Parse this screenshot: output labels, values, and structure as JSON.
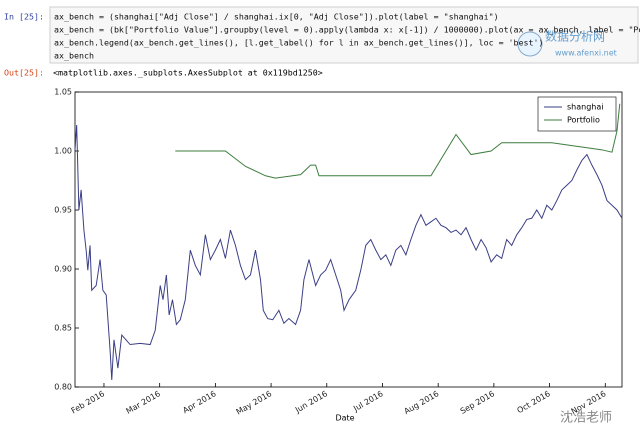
{
  "cell": {
    "input_prompt": "In [25]:",
    "code_lines": [
      "ax_bench = (shanghai[\"Adj Close\"] / shanghai.ix[0, \"Adj Close\"]).plot(label = \"shanghai\")",
      "ax_bench = (bk[\"Portfolio Value\"].groupby(level = 0).apply(lambda x: x[-1]) / 1000000).plot(ax = ax_bench, label = \"Por",
      "ax_bench.legend(ax_bench.get_lines(), [l.get_label() for l in ax_bench.get_lines()], loc = 'best')",
      "ax_bench"
    ],
    "output_prompt": "Out[25]:",
    "output_text": "<matplotlib.axes._subplots.AxesSubplot at 0x119bd1250>"
  },
  "chart_data": {
    "type": "line",
    "x_label": "Date",
    "xlim": [
      1.48,
      11.3
    ],
    "xticks": [
      {
        "value": 2,
        "label": "Feb 2016"
      },
      {
        "value": 3,
        "label": "Mar 2016"
      },
      {
        "value": 4,
        "label": "Apr 2016"
      },
      {
        "value": 5,
        "label": "May 2016"
      },
      {
        "value": 6,
        "label": "Jun 2016"
      },
      {
        "value": 7,
        "label": "Jul 2016"
      },
      {
        "value": 8,
        "label": "Aug 2016"
      },
      {
        "value": 9,
        "label": "Sep 2016"
      },
      {
        "value": 10,
        "label": "Oct 2016"
      },
      {
        "value": 11,
        "label": "Nov 2016"
      }
    ],
    "ylim": [
      0.8,
      1.05
    ],
    "yticks": [
      {
        "value": 0.8,
        "label": "0.80"
      },
      {
        "value": 0.85,
        "label": "0.85"
      },
      {
        "value": 0.9,
        "label": "0.90"
      },
      {
        "value": 0.95,
        "label": "0.95"
      },
      {
        "value": 1.0,
        "label": "1.00"
      },
      {
        "value": 1.05,
        "label": "1.05"
      }
    ],
    "legend": "upper right",
    "series": [
      {
        "name": "shanghai",
        "color": "#3b3f86",
        "x": [
          1.48,
          1.51,
          1.55,
          1.59,
          1.64,
          1.68,
          1.71,
          1.75,
          1.78,
          1.86,
          1.93,
          1.98,
          2.04,
          2.11,
          2.14,
          2.18,
          2.25,
          2.32,
          2.47,
          2.65,
          2.83,
          2.92,
          3.01,
          3.06,
          3.12,
          3.17,
          3.23,
          3.3,
          3.37,
          3.46,
          3.55,
          3.64,
          3.73,
          3.82,
          3.91,
          4.0,
          4.09,
          4.18,
          4.27,
          4.36,
          4.45,
          4.54,
          4.63,
          4.72,
          4.81,
          4.86,
          4.94,
          5.03,
          5.14,
          5.23,
          5.32,
          5.44,
          5.53,
          5.59,
          5.68,
          5.8,
          5.89,
          5.98,
          6.07,
          6.16,
          6.25,
          6.31,
          6.4,
          6.52,
          6.61,
          6.7,
          6.79,
          6.88,
          6.97,
          7.06,
          7.15,
          7.24,
          7.33,
          7.42,
          7.51,
          7.6,
          7.69,
          7.78,
          7.87,
          7.96,
          8.05,
          8.14,
          8.23,
          8.32,
          8.41,
          8.5,
          8.59,
          8.68,
          8.77,
          8.86,
          8.95,
          9.05,
          9.14,
          9.23,
          9.32,
          9.41,
          9.5,
          9.59,
          9.68,
          9.77,
          9.86,
          9.95,
          10.04,
          10.13,
          10.22,
          10.31,
          10.4,
          10.49,
          10.58,
          10.67,
          10.76,
          10.85,
          10.94,
          11.03,
          11.12,
          11.21,
          11.3
        ],
        "values": [
          1.001,
          1.022,
          0.95,
          0.967,
          0.933,
          0.916,
          0.899,
          0.92,
          0.882,
          0.886,
          0.908,
          0.882,
          0.878,
          0.831,
          0.806,
          0.84,
          0.816,
          0.844,
          0.836,
          0.837,
          0.836,
          0.848,
          0.886,
          0.874,
          0.895,
          0.861,
          0.874,
          0.853,
          0.857,
          0.874,
          0.916,
          0.903,
          0.895,
          0.929,
          0.908,
          0.916,
          0.925,
          0.909,
          0.933,
          0.92,
          0.903,
          0.891,
          0.895,
          0.916,
          0.891,
          0.865,
          0.858,
          0.857,
          0.865,
          0.854,
          0.858,
          0.853,
          0.865,
          0.891,
          0.908,
          0.886,
          0.895,
          0.899,
          0.908,
          0.895,
          0.882,
          0.865,
          0.874,
          0.882,
          0.899,
          0.92,
          0.925,
          0.916,
          0.908,
          0.912,
          0.903,
          0.916,
          0.92,
          0.912,
          0.925,
          0.937,
          0.946,
          0.937,
          0.94,
          0.943,
          0.937,
          0.935,
          0.931,
          0.933,
          0.929,
          0.935,
          0.925,
          0.916,
          0.925,
          0.918,
          0.906,
          0.912,
          0.909,
          0.925,
          0.92,
          0.929,
          0.935,
          0.942,
          0.943,
          0.95,
          0.943,
          0.954,
          0.95,
          0.958,
          0.967,
          0.971,
          0.975,
          0.984,
          0.992,
          0.997,
          0.988,
          0.98,
          0.971,
          0.958,
          0.954,
          0.95,
          0.943
        ]
      },
      {
        "name": "Portfolio",
        "color": "#3d7d3d",
        "x": [
          3.28,
          4.18,
          4.54,
          4.9,
          5.08,
          5.53,
          5.71,
          5.8,
          5.86,
          6.25,
          7.87,
          8.32,
          8.59,
          8.95,
          9.14,
          10.04,
          10.94,
          11.12,
          11.21,
          11.26
        ],
        "values": [
          1.0,
          1.0,
          0.987,
          0.979,
          0.977,
          0.98,
          0.988,
          0.988,
          0.979,
          0.979,
          0.979,
          1.014,
          0.997,
          1.0,
          1.007,
          1.007,
          1.001,
          0.999,
          1.017,
          1.04
        ]
      }
    ]
  },
  "watermark": {
    "site_name": "数据分析网",
    "site_url": "www.afenxi.net",
    "author": "沈浩老师"
  }
}
